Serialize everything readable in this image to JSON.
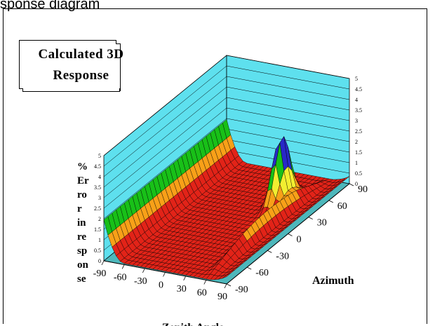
{
  "header_fragment": "sponse diagram",
  "chart_data": {
    "type": "surface3d",
    "title": "Calculated 3D\nResponse",
    "xlabel": "Zenith Angle",
    "ylabel": "Azimuth",
    "zlabel": "% Error in response",
    "x_ticks": [
      "-90",
      "-60",
      "-30",
      "0",
      "30",
      "60",
      "90"
    ],
    "y_ticks": [
      "-90",
      "-60",
      "-30",
      "0",
      "30",
      "60",
      "90"
    ],
    "z_ticks": [
      "0",
      "0.5",
      "1",
      "1.5",
      "2",
      "2.5",
      "3",
      "3.5",
      "4",
      "4.5",
      "5"
    ],
    "xlim": [
      -90,
      90
    ],
    "ylim": [
      -90,
      90
    ],
    "zlim": [
      0,
      5
    ],
    "colors": {
      "wall": "#5ee0ee",
      "floor": "#4db7bb",
      "band_0": "#e22318",
      "band_1": "#f8a018",
      "band_2": "#f2ee30",
      "band_3": "#18c018",
      "band_4": "#2828c8",
      "band_5": "#40b8e8"
    }
  }
}
